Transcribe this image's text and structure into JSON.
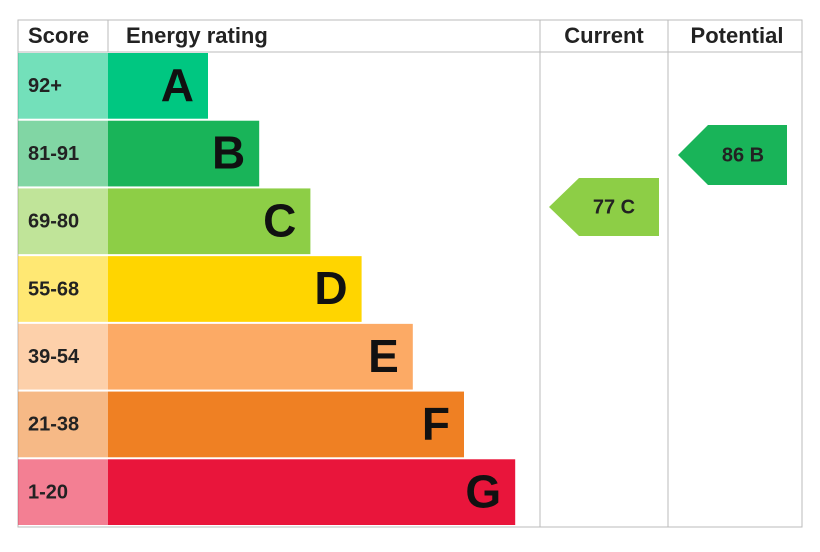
{
  "header": {
    "score": "Score",
    "rating": "Energy rating",
    "current": "Current",
    "potential": "Potential"
  },
  "bands": [
    {
      "score": "92+",
      "letter": "A",
      "color": "#00c781"
    },
    {
      "score": "81-91",
      "letter": "B",
      "color": "#19b459"
    },
    {
      "score": "69-80",
      "letter": "C",
      "color": "#8dce46"
    },
    {
      "score": "55-68",
      "letter": "D",
      "color": "#ffd500"
    },
    {
      "score": "39-54",
      "letter": "E",
      "color": "#fcaa65"
    },
    {
      "score": "21-38",
      "letter": "F",
      "color": "#ef8023"
    },
    {
      "score": "1-20",
      "letter": "G",
      "color": "#e9153b"
    }
  ],
  "current": {
    "label": "77 C",
    "color": "#8dce46"
  },
  "potential": {
    "label": "86 B",
    "color": "#19b459"
  }
}
